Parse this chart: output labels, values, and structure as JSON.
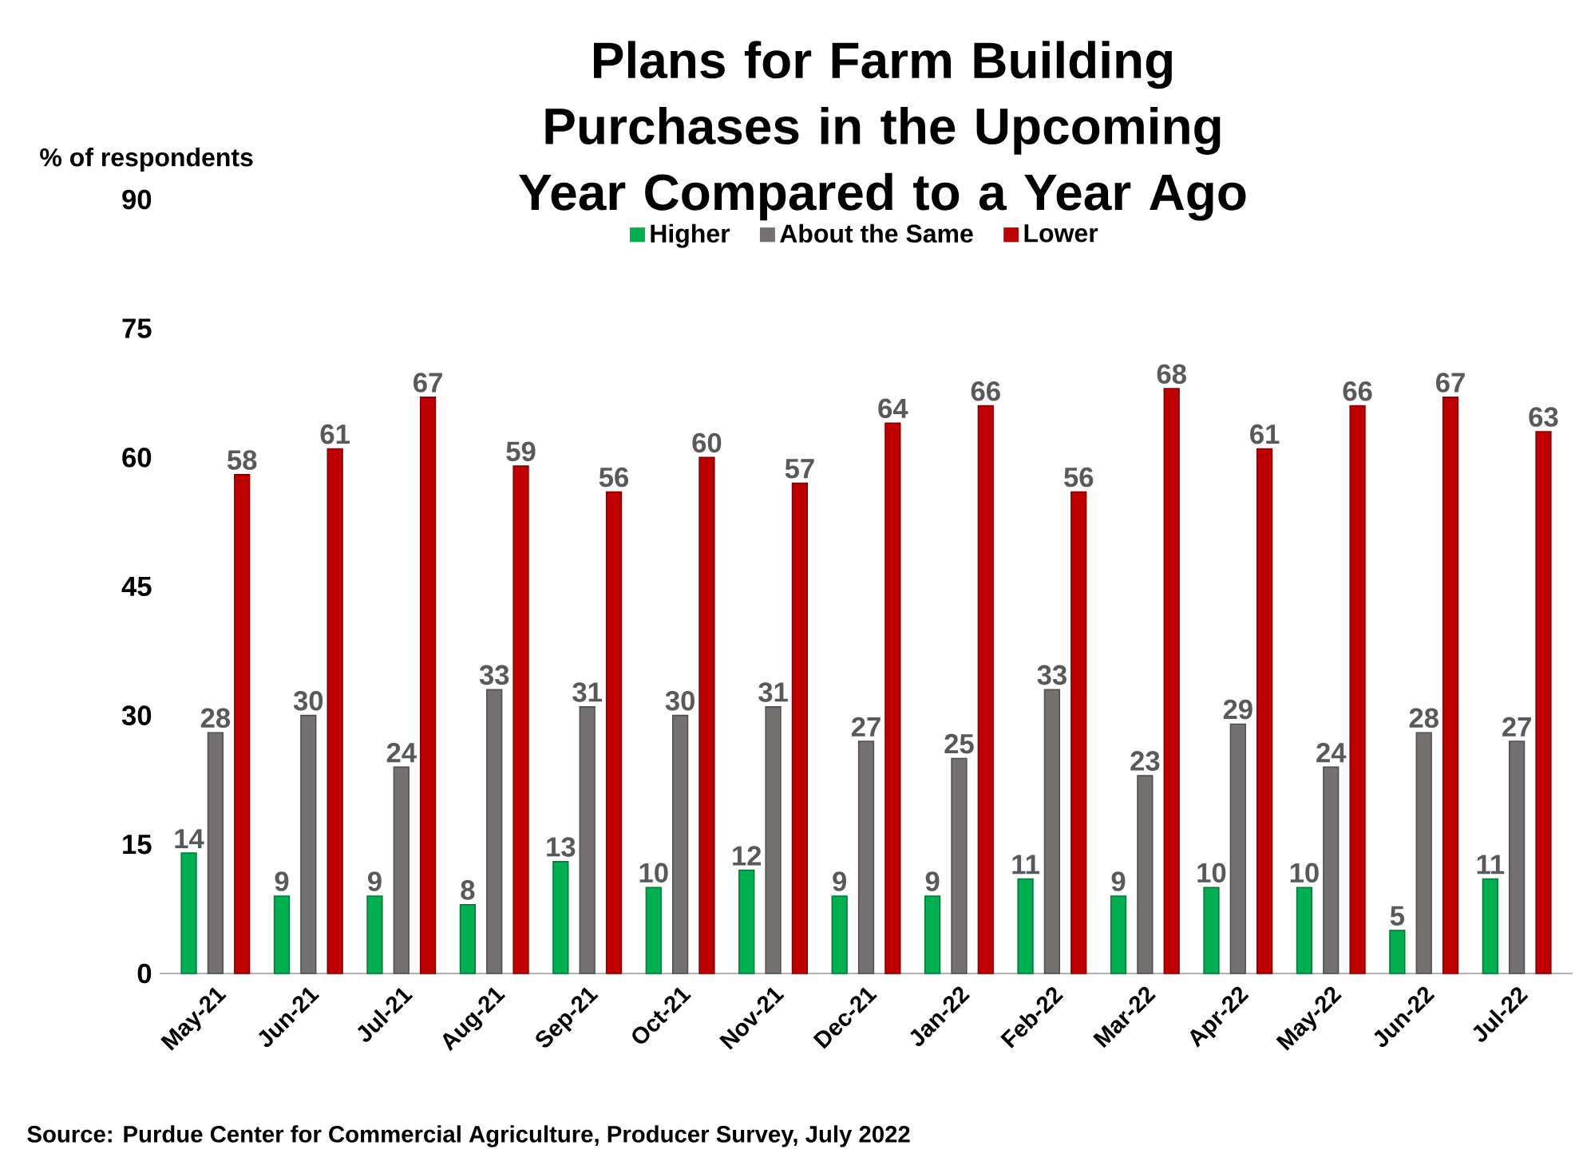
{
  "chart_data": {
    "type": "bar",
    "title": "Plans for Farm Building Purchases in the Upcoming Year Compared to a Year Ago",
    "ylabel": "% of respondents",
    "categories": [
      "May-21",
      "Jun-21",
      "Jul-21",
      "Aug-21",
      "Sep-21",
      "Oct-21",
      "Nov-21",
      "Dec-21",
      "Jan-22",
      "Feb-22",
      "Mar-22",
      "Apr-22",
      "May-22",
      "Jun-22",
      "Jul-22"
    ],
    "series": [
      {
        "name": "Higher",
        "color": "#00b050",
        "values": [
          14,
          9,
          9,
          8,
          13,
          10,
          12,
          9,
          9,
          11,
          9,
          10,
          10,
          5,
          11
        ]
      },
      {
        "name": "About the Same",
        "color": "#767171",
        "values": [
          28,
          30,
          24,
          33,
          31,
          30,
          31,
          27,
          25,
          33,
          23,
          29,
          24,
          28,
          27
        ]
      },
      {
        "name": "Lower",
        "color": "#c00000",
        "values": [
          58,
          61,
          67,
          59,
          56,
          60,
          57,
          64,
          66,
          56,
          68,
          61,
          66,
          67,
          63
        ]
      }
    ],
    "ylim": [
      0,
      90
    ],
    "yticks": [
      0,
      15,
      30,
      45,
      60,
      75,
      90
    ],
    "data_labels": true,
    "legend": "top",
    "grid": false,
    "annotations": [
      "Source: Purdue Center for Commercial Agriculture, Producer Survey, July 2022"
    ]
  }
}
